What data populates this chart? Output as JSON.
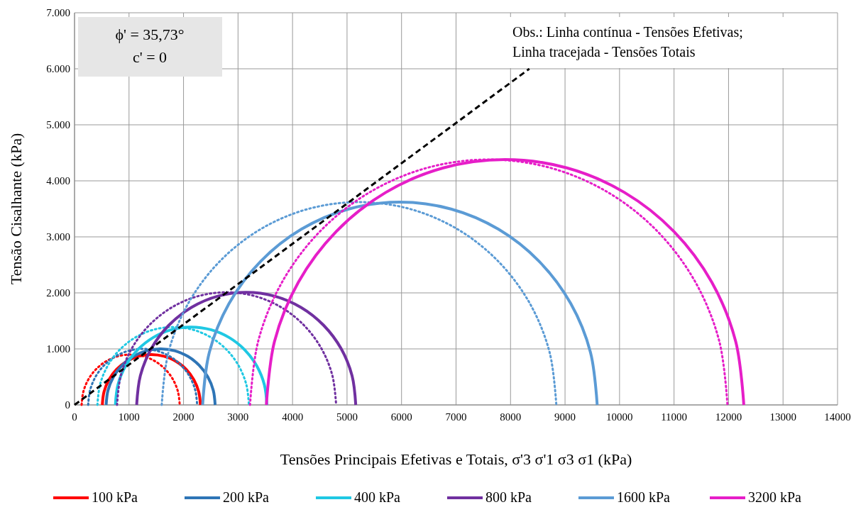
{
  "chart_data": {
    "type": "line",
    "xlabel": "Tensões Principais Efetivas e Totais, σ'3 σ'1 σ3 σ1 (kPa)",
    "ylabel": "Tensão Cisalhante (kPa)",
    "annotations": [
      "ϕ' = 35,73°",
      "c' = 0",
      "Obs.: Linha contínua - Tensões Efetivas;",
      "Linha tracejada - Tensões Totais"
    ],
    "xlim": [
      0,
      14000
    ],
    "xticks": [
      0,
      1000,
      2000,
      3000,
      4000,
      5000,
      6000,
      7000,
      8000,
      9000,
      10000,
      11000,
      12000,
      13000,
      14000
    ],
    "ylim": [
      0,
      7000
    ],
    "yticks": [
      0,
      {
        "value": 1000,
        "label": "1.000"
      },
      {
        "value": 2000,
        "label": "2.000"
      },
      {
        "value": 3000,
        "label": "3.000"
      },
      {
        "value": 4000,
        "label": "4.000"
      },
      {
        "value": 5000,
        "label": "5.000"
      },
      {
        "value": 6000,
        "label": "6.000"
      },
      {
        "value": 7000,
        "label": "7.000"
      }
    ],
    "grid": true,
    "legend": "bottom",
    "series": [
      {
        "name": "100 kPa",
        "color": "#ff0000",
        "line_style": "solid",
        "x": [
          510,
          541,
          631,
          774,
          960,
          1177,
          1410,
          1643,
          1860,
          2046,
          2189,
          2279,
          2310
        ],
        "values": [
          0,
          233,
          450,
          636,
          779,
          869,
          900,
          869,
          779,
          636,
          450,
          233,
          0
        ]
      },
      {
        "color": "#ff0000",
        "line_style": "dotted",
        "x": [
          130,
          161,
          251,
          394,
          580,
          797,
          1030,
          1263,
          1480,
          1666,
          1809,
          1899,
          1930
        ],
        "values": [
          0,
          233,
          450,
          636,
          779,
          869,
          900,
          869,
          779,
          636,
          450,
          233,
          0
        ]
      },
      {
        "name": "200 kPa",
        "color": "#2e75b6",
        "line_style": "solid",
        "x": [
          580,
          614,
          714,
          873,
          1080,
          1321,
          1580,
          1839,
          2080,
          2287,
          2446,
          2546,
          2580
        ],
        "values": [
          0,
          259,
          500,
          707,
          866,
          966,
          1000,
          966,
          866,
          707,
          500,
          259,
          0
        ]
      },
      {
        "color": "#2e75b6",
        "line_style": "dotted",
        "x": [
          250,
          284,
          384,
          543,
          750,
          991,
          1250,
          1509,
          1750,
          1957,
          2116,
          2216,
          2250
        ],
        "values": [
          0,
          259,
          500,
          707,
          866,
          966,
          1000,
          966,
          866,
          707,
          500,
          259,
          0
        ]
      },
      {
        "name": "400 kPa",
        "color": "#1fc8e3",
        "line_style": "solid",
        "x": [
          750,
          797,
          936,
          1157,
          1445,
          1780,
          2140,
          2500,
          2835,
          3123,
          3344,
          3483,
          3530
        ],
        "values": [
          0,
          360,
          695,
          983,
          1204,
          1343,
          1390,
          1343,
          1204,
          983,
          695,
          360,
          0
        ]
      },
      {
        "color": "#1fc8e3",
        "line_style": "dotted",
        "x": [
          420,
          467,
          606,
          827,
          1115,
          1450,
          1810,
          2170,
          2505,
          2793,
          3014,
          3153,
          3200
        ],
        "values": [
          0,
          360,
          695,
          983,
          1204,
          1343,
          1390,
          1343,
          1204,
          983,
          695,
          360,
          0
        ]
      },
      {
        "name": "800 kPa",
        "color": "#7030a0",
        "line_style": "solid",
        "x": [
          1140,
          1208,
          1409,
          1729,
          2145,
          2629,
          3150,
          3671,
          4155,
          4571,
          4891,
          5092,
          5160
        ],
        "values": [
          0,
          521,
          1005,
          1421,
          1741,
          1942,
          2010,
          1942,
          1741,
          1421,
          1005,
          521,
          0
        ]
      },
      {
        "color": "#7030a0",
        "line_style": "dotted",
        "x": [
          780,
          848,
          1049,
          1369,
          1785,
          2269,
          2790,
          3311,
          3795,
          4211,
          4531,
          4732,
          4800
        ],
        "values": [
          0,
          521,
          1005,
          1421,
          1741,
          1942,
          2010,
          1942,
          1741,
          1421,
          1005,
          521,
          0
        ]
      },
      {
        "name": "1600 kPa",
        "color": "#5b9bd5",
        "line_style": "solid",
        "x": [
          2350,
          2473,
          2835,
          3411,
          4160,
          5032,
          5970,
          6908,
          7780,
          8529,
          9105,
          9467,
          9590
        ],
        "values": [
          0,
          938,
          1810,
          2559,
          3135,
          3497,
          3620,
          3497,
          3135,
          2559,
          1810,
          938,
          0
        ]
      },
      {
        "color": "#5b9bd5",
        "line_style": "dotted",
        "x": [
          1600,
          1723,
          2085,
          2661,
          3410,
          4282,
          5220,
          6158,
          7030,
          7779,
          8355,
          8717,
          8840
        ],
        "values": [
          0,
          938,
          1810,
          2559,
          3135,
          3497,
          3620,
          3497,
          3135,
          2559,
          1810,
          938,
          0
        ]
      },
      {
        "name": "3200 kPa",
        "color": "#e61ec8",
        "line_style": "solid",
        "x": [
          3520,
          3669,
          4107,
          4803,
          5710,
          6766,
          7900,
          9034,
          10090,
          10997,
          11693,
          12131,
          12280
        ],
        "values": [
          0,
          1134,
          2190,
          3097,
          3793,
          4231,
          4380,
          4231,
          3793,
          3097,
          2190,
          1134,
          0
        ]
      },
      {
        "color": "#e61ec8",
        "line_style": "dotted",
        "x": [
          3220,
          3369,
          3807,
          4503,
          5410,
          6466,
          7600,
          8734,
          9790,
          10697,
          11393,
          11831,
          11980
        ],
        "values": [
          0,
          1134,
          2190,
          3097,
          3793,
          4231,
          4380,
          4231,
          3793,
          3097,
          2190,
          1134,
          0
        ]
      },
      {
        "color": "#000000",
        "line_style": "dashed",
        "x": [
          0,
          8345
        ],
        "values": [
          0,
          6000
        ]
      }
    ]
  }
}
